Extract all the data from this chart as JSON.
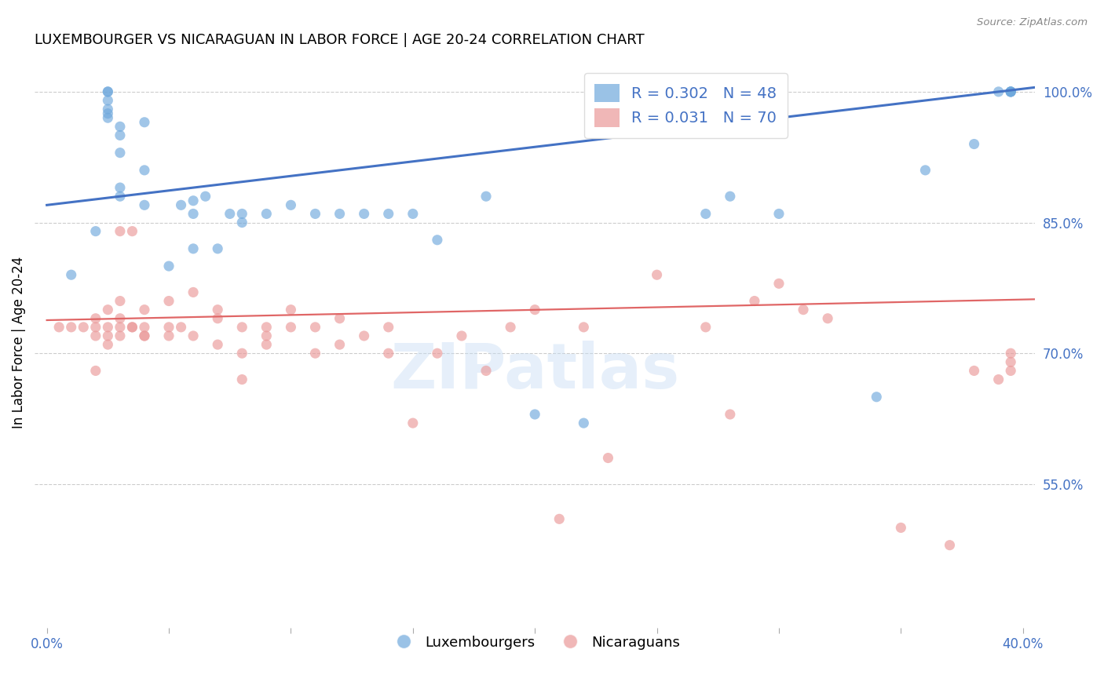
{
  "title": "LUXEMBOURGER VS NICARAGUAN IN LABOR FORCE | AGE 20-24 CORRELATION CHART",
  "source": "Source: ZipAtlas.com",
  "ylabel": "In Labor Force | Age 20-24",
  "xlim": [
    -0.005,
    0.405
  ],
  "ylim": [
    0.385,
    1.04
  ],
  "yticks": [
    0.55,
    0.7,
    0.85,
    1.0
  ],
  "ytick_labels": [
    "55.0%",
    "70.0%",
    "85.0%",
    "100.0%"
  ],
  "xticks": [
    0.0,
    0.05,
    0.1,
    0.15,
    0.2,
    0.25,
    0.3,
    0.35,
    0.4
  ],
  "xtick_labels": [
    "0.0%",
    "",
    "",
    "",
    "",
    "",
    "",
    "",
    "40.0%"
  ],
  "grid_color": "#cccccc",
  "axis_color": "#4472c4",
  "watermark": "ZIPatlas",
  "blue_scatter": {
    "x": [
      0.01,
      0.02,
      0.025,
      0.025,
      0.025,
      0.025,
      0.025,
      0.025,
      0.03,
      0.03,
      0.03,
      0.03,
      0.03,
      0.04,
      0.04,
      0.04,
      0.05,
      0.055,
      0.06,
      0.06,
      0.06,
      0.065,
      0.07,
      0.075,
      0.08,
      0.08,
      0.09,
      0.1,
      0.11,
      0.12,
      0.13,
      0.14,
      0.15,
      0.16,
      0.18,
      0.2,
      0.22,
      0.27,
      0.28,
      0.3,
      0.34,
      0.36,
      0.38,
      0.39,
      0.395,
      0.395,
      0.395,
      0.395
    ],
    "y": [
      0.79,
      0.84,
      0.97,
      0.975,
      0.98,
      0.99,
      1.0,
      1.0,
      0.88,
      0.89,
      0.93,
      0.95,
      0.96,
      0.87,
      0.91,
      0.965,
      0.8,
      0.87,
      0.82,
      0.86,
      0.875,
      0.88,
      0.82,
      0.86,
      0.85,
      0.86,
      0.86,
      0.87,
      0.86,
      0.86,
      0.86,
      0.86,
      0.86,
      0.83,
      0.88,
      0.63,
      0.62,
      0.86,
      0.88,
      0.86,
      0.65,
      0.91,
      0.94,
      1.0,
      1.0,
      1.0,
      1.0,
      1.0
    ],
    "color": "#6fa8dc",
    "alpha": 0.65,
    "size": 90,
    "label": "Luxembourgers",
    "R": 0.302,
    "N": 48
  },
  "pink_scatter": {
    "x": [
      0.005,
      0.01,
      0.015,
      0.02,
      0.02,
      0.02,
      0.02,
      0.025,
      0.025,
      0.025,
      0.025,
      0.03,
      0.03,
      0.03,
      0.03,
      0.03,
      0.035,
      0.035,
      0.035,
      0.04,
      0.04,
      0.04,
      0.04,
      0.05,
      0.05,
      0.05,
      0.055,
      0.06,
      0.06,
      0.07,
      0.07,
      0.07,
      0.08,
      0.08,
      0.08,
      0.09,
      0.09,
      0.09,
      0.1,
      0.1,
      0.11,
      0.11,
      0.12,
      0.12,
      0.13,
      0.14,
      0.14,
      0.15,
      0.16,
      0.17,
      0.18,
      0.19,
      0.2,
      0.21,
      0.22,
      0.23,
      0.25,
      0.27,
      0.28,
      0.29,
      0.3,
      0.31,
      0.32,
      0.35,
      0.37,
      0.38,
      0.39,
      0.395,
      0.395,
      0.395
    ],
    "y": [
      0.73,
      0.73,
      0.73,
      0.68,
      0.72,
      0.73,
      0.74,
      0.71,
      0.72,
      0.73,
      0.75,
      0.72,
      0.73,
      0.74,
      0.76,
      0.84,
      0.73,
      0.73,
      0.84,
      0.72,
      0.72,
      0.73,
      0.75,
      0.72,
      0.73,
      0.76,
      0.73,
      0.72,
      0.77,
      0.71,
      0.74,
      0.75,
      0.67,
      0.7,
      0.73,
      0.71,
      0.72,
      0.73,
      0.73,
      0.75,
      0.7,
      0.73,
      0.71,
      0.74,
      0.72,
      0.7,
      0.73,
      0.62,
      0.7,
      0.72,
      0.68,
      0.73,
      0.75,
      0.51,
      0.73,
      0.58,
      0.79,
      0.73,
      0.63,
      0.76,
      0.78,
      0.75,
      0.74,
      0.5,
      0.48,
      0.68,
      0.67,
      0.68,
      0.69,
      0.7
    ],
    "color": "#ea9999",
    "alpha": 0.65,
    "size": 90,
    "label": "Nicaraguans",
    "R": 0.031,
    "N": 70
  },
  "blue_line": {
    "x0": 0.0,
    "y0": 0.87,
    "x1": 0.405,
    "y1": 1.005,
    "color": "#4472c4",
    "linewidth": 2.2
  },
  "pink_line": {
    "x0": 0.0,
    "y0": 0.738,
    "x1": 0.405,
    "y1": 0.762,
    "color": "#e06666",
    "linewidth": 1.6
  },
  "background_color": "#ffffff"
}
